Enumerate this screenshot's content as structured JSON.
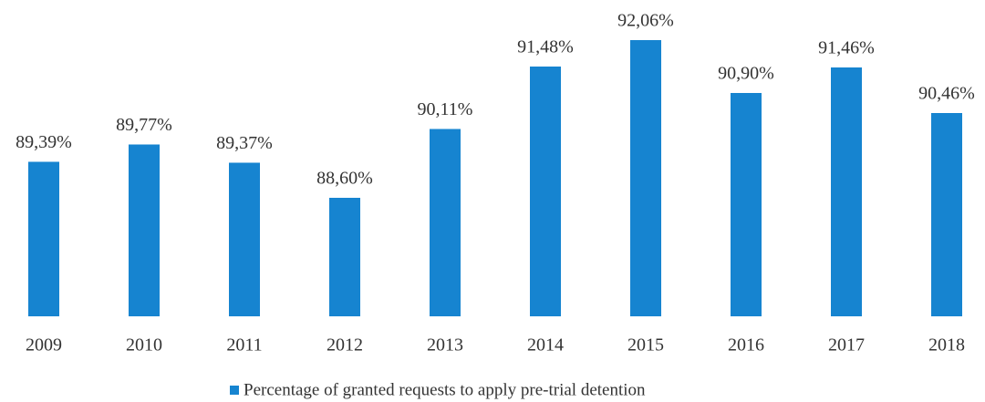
{
  "chart_data": {
    "type": "bar",
    "categories": [
      "2009",
      "2010",
      "2011",
      "2012",
      "2013",
      "2014",
      "2015",
      "2016",
      "2017",
      "2018"
    ],
    "series": [
      {
        "name": "Percentage of granted requests to apply pre-trial detention",
        "color": "#1684d0",
        "values": [
          89.39,
          89.77,
          89.37,
          88.6,
          90.11,
          91.48,
          92.06,
          90.9,
          91.46,
          90.46
        ],
        "value_labels": [
          "89,39%",
          "89,77%",
          "89,37%",
          "88,60%",
          "90,11%",
          "91,48%",
          "92,06%",
          "90,90%",
          "91,46%",
          "90,46%"
        ]
      }
    ],
    "ylim": [
      86,
      92.5
    ],
    "legend": "bottom"
  }
}
